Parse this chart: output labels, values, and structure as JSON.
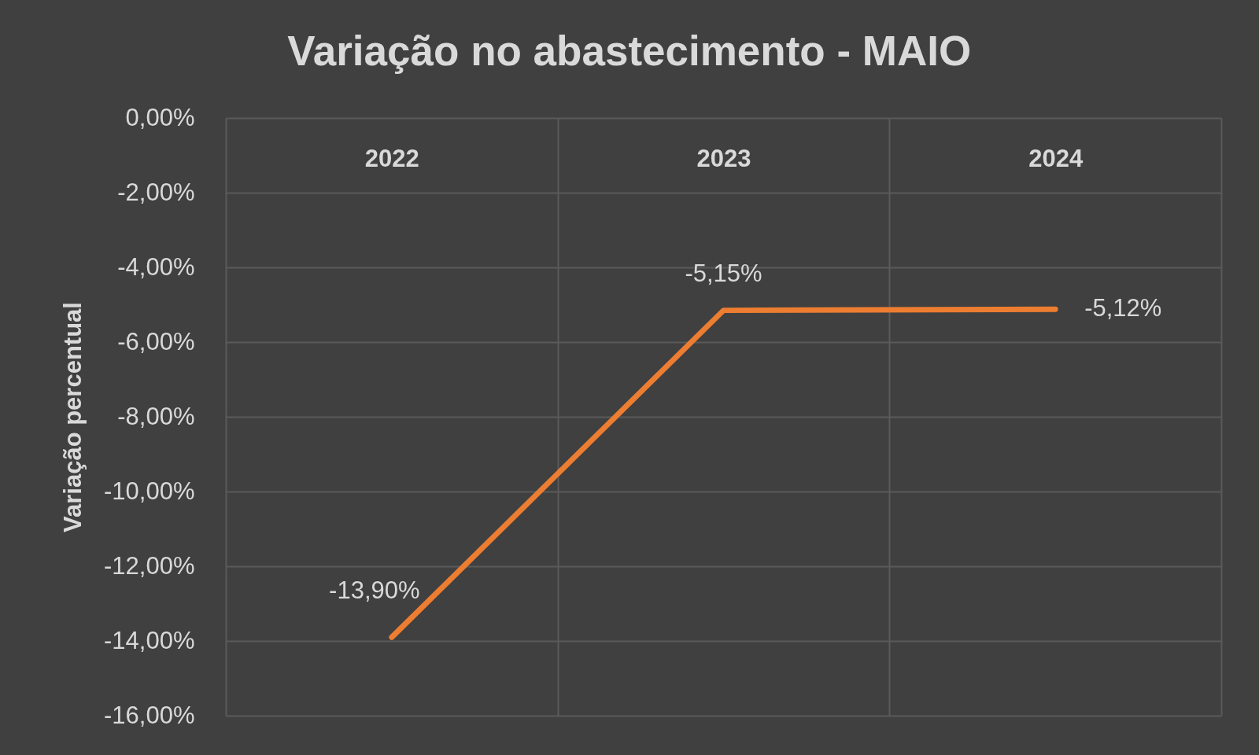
{
  "chart_data": {
    "type": "line",
    "title": "Variação no abastecimento - MAIO",
    "ylabel": "Variação percentual",
    "categories": [
      "2022",
      "2023",
      "2024"
    ],
    "values": [
      -13.9,
      -5.15,
      -5.12
    ],
    "color": "#ed7d31",
    "value_labels": [
      "-13,90%",
      "-5,15%",
      "-5,12%"
    ],
    "ylim": [
      -16,
      0
    ],
    "yticks": [
      {
        "value": 0,
        "label": "0,00%"
      },
      {
        "value": -2,
        "label": "-2,00%"
      },
      {
        "value": -4,
        "label": "-4,00%"
      },
      {
        "value": -6,
        "label": "-6,00%"
      },
      {
        "value": -8,
        "label": "-8,00%"
      },
      {
        "value": -10,
        "label": "-10,00%"
      },
      {
        "value": -12,
        "label": "-12,00%"
      },
      {
        "value": -14,
        "label": "-14,00%"
      },
      {
        "value": -16,
        "label": "-16,00%"
      }
    ],
    "grid": true,
    "line_style": "solid"
  }
}
